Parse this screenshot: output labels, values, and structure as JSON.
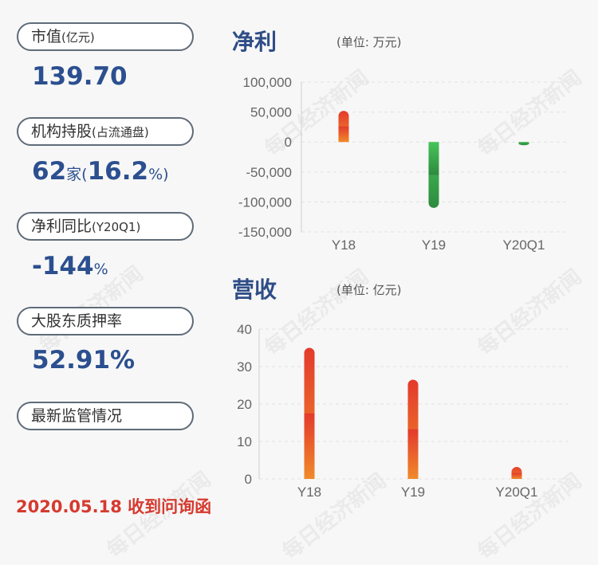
{
  "watermark": "每日经济新闻",
  "left": {
    "market_cap": {
      "label": "市值",
      "label_unit": "(亿元)",
      "value": "139.70"
    },
    "institutions": {
      "label": "机构持股",
      "label_unit": "(占流通盘)",
      "value_num": "62",
      "value_unit": "家",
      "value_open": "(",
      "value_pct": "16.2",
      "value_pct_unit": "%)"
    },
    "profit_yoy": {
      "label": "净利同比",
      "label_unit": "(Y20Q1)",
      "value": "-144",
      "value_unit": "%"
    },
    "pledge": {
      "label": "大股东质押率",
      "value": "52.91%"
    },
    "supervision": {
      "label": "最新监管情况"
    },
    "note": "2020.05.18 收到问询函"
  },
  "chart_data": [
    {
      "type": "bar",
      "title": "净利",
      "unit": "(单位: 万元)",
      "categories": [
        "Y18",
        "Y19",
        "Y20Q1"
      ],
      "values": [
        52000,
        -110000,
        -3500
      ],
      "yticks": [
        "100,000",
        "50,000",
        "0",
        "-50,000",
        "-100,000",
        "-150,000"
      ],
      "ylim": [
        -150000,
        100000
      ],
      "colors": {
        "positive_top": "#e33a2c",
        "positive_bottom": "#f08a2a",
        "negative_top": "#47c45a",
        "negative_bottom": "#2e8a3e"
      }
    },
    {
      "type": "bar",
      "title": "营收",
      "unit": "(单位: 亿元)",
      "categories": [
        "Y18",
        "Y19",
        "Y20Q1"
      ],
      "values": [
        35,
        26.5,
        3.2
      ],
      "yticks": [
        "40",
        "30",
        "20",
        "10",
        "0"
      ],
      "ylim": [
        0,
        40
      ],
      "colors": {
        "positive_top": "#e33a2c",
        "positive_bottom": "#f08a2a"
      }
    }
  ]
}
